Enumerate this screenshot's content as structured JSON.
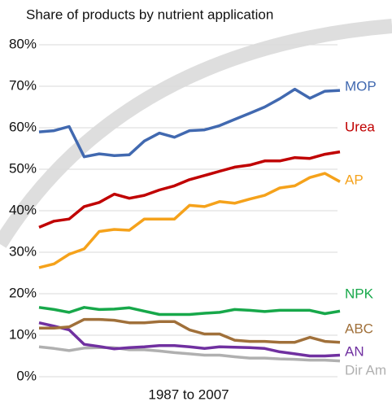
{
  "chart_data": {
    "type": "line",
    "title": "Share of products by nutrient application",
    "x_label": "1987 to 2007",
    "ylim": [
      0,
      80
    ],
    "yticks": [
      {
        "value": 0,
        "label": "0%"
      },
      {
        "value": 10,
        "label": "10%"
      },
      {
        "value": 20,
        "label": "20%"
      },
      {
        "value": 30,
        "label": "30%"
      },
      {
        "value": 40,
        "label": "40%"
      },
      {
        "value": 50,
        "label": "50%"
      },
      {
        "value": 60,
        "label": "60%"
      },
      {
        "value": 70,
        "label": "70%"
      },
      {
        "value": 80,
        "label": "80%"
      }
    ],
    "grid": true,
    "series": [
      {
        "name": "MOP",
        "color": "#4169b0",
        "values": [
          59,
          59.3,
          60.3,
          53,
          53.7,
          53.3,
          53.5,
          56.8,
          58.7,
          57.7,
          59.3,
          59.5,
          60.5,
          62,
          63.5,
          65,
          67,
          69.3,
          67.1,
          68.8,
          69
        ]
      },
      {
        "name": "Urea",
        "color": "#c00000",
        "values": [
          36,
          37.5,
          38,
          41,
          42,
          44,
          43,
          43.7,
          45,
          46,
          47.5,
          48.5,
          49.5,
          50.5,
          51,
          52,
          52,
          52.8,
          52.6,
          53.6,
          54.2
        ]
      },
      {
        "name": "AP",
        "color": "#f5a21b",
        "values": [
          26.3,
          27.2,
          29.5,
          30.8,
          35,
          35.5,
          35.3,
          38,
          38,
          38,
          41.3,
          41,
          42.2,
          41.8,
          42.8,
          43.7,
          45.5,
          46,
          48,
          49,
          47
        ]
      },
      {
        "name": "NPK",
        "color": "#17a84a",
        "values": [
          16.7,
          16.2,
          15.5,
          16.7,
          16.2,
          16.3,
          16.6,
          15.8,
          15,
          15,
          15,
          15.3,
          15.5,
          16.2,
          16,
          15.7,
          16,
          16,
          16,
          15.2,
          15.8
        ]
      },
      {
        "name": "ABC",
        "color": "#a0703a",
        "values": [
          11.7,
          11.7,
          12,
          13.8,
          13.8,
          13.6,
          13,
          13,
          13.3,
          13.3,
          11.3,
          10.3,
          10.3,
          8.8,
          8.5,
          8.5,
          8.3,
          8.3,
          9.5,
          8.5,
          8.3
        ]
      },
      {
        "name": "AN",
        "color": "#7030a0",
        "values": [
          13,
          12.2,
          11.3,
          7.8,
          7.3,
          6.7,
          7,
          7.2,
          7.5,
          7.5,
          7.2,
          6.8,
          7.2,
          7.1,
          7,
          6.8,
          6,
          5.5,
          5,
          5,
          5.2
        ]
      },
      {
        "name": "Dir Am",
        "color": "#b0b0b0",
        "values": [
          7.2,
          6.8,
          6.3,
          6.9,
          7,
          7,
          6.5,
          6.5,
          6.2,
          5.8,
          5.5,
          5.2,
          5.2,
          4.8,
          4.5,
          4.5,
          4.3,
          4.2,
          4,
          4,
          3.8
        ]
      }
    ]
  }
}
